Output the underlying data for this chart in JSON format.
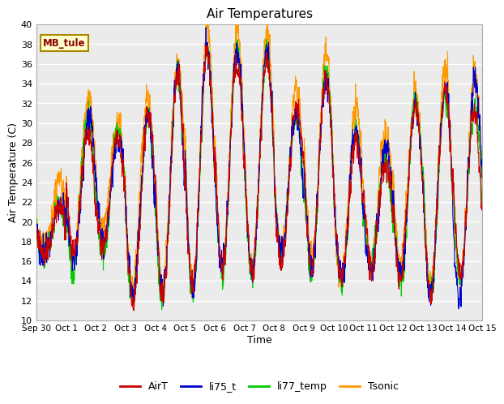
{
  "title": "Air Temperatures",
  "xlabel": "Time",
  "ylabel": "Air Temperature (C)",
  "ylim": [
    10,
    40
  ],
  "yticks": [
    10,
    12,
    14,
    16,
    18,
    20,
    22,
    24,
    26,
    28,
    30,
    32,
    34,
    36,
    38,
    40
  ],
  "site_label": "MB_tule",
  "legend_entries": [
    "AirT",
    "li75_t",
    "li77_temp",
    "Tsonic"
  ],
  "line_colors": [
    "#cc0000",
    "#0000cc",
    "#00cc00",
    "#ff9900"
  ],
  "n_days": 16,
  "pts_per_day": 144,
  "seed": 7
}
